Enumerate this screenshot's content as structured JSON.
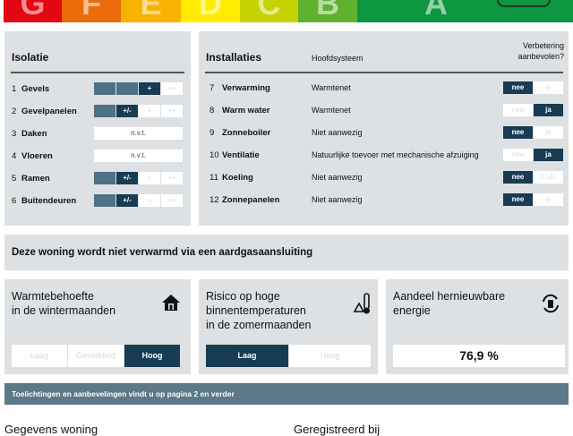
{
  "label_bar": [
    {
      "letter": "G",
      "color": "#e30613"
    },
    {
      "letter": "F",
      "color": "#ec6b09"
    },
    {
      "letter": "E",
      "color": "#f8b200"
    },
    {
      "letter": "D",
      "color": "#ffec00"
    },
    {
      "letter": "C",
      "color": "#c6d300"
    },
    {
      "letter": "B",
      "color": "#5fb130"
    },
    {
      "letter": "A",
      "color": "#0c9640"
    }
  ],
  "isolatie": {
    "title": "Isolatie",
    "rows": [
      {
        "num": "1",
        "label": "Gevels",
        "cells": [
          {
            "t": "",
            "s": "fill"
          },
          {
            "t": "",
            "s": "fill"
          },
          {
            "t": "+",
            "s": "sel"
          },
          {
            "t": "++",
            "s": "empty"
          }
        ]
      },
      {
        "num": "2",
        "label": "Gevelpanelen",
        "cells": [
          {
            "t": "",
            "s": "fill"
          },
          {
            "t": "+/-",
            "s": "sel"
          },
          {
            "t": "+",
            "s": "empty"
          },
          {
            "t": "++",
            "s": "empty"
          }
        ]
      },
      {
        "num": "3",
        "label": "Daken",
        "value": "n.v.t."
      },
      {
        "num": "4",
        "label": "Vloeren",
        "value": "n.v.t."
      },
      {
        "num": "5",
        "label": "Ramen",
        "cells": [
          {
            "t": "",
            "s": "fill"
          },
          {
            "t": "+/-",
            "s": "sel"
          },
          {
            "t": "+",
            "s": "empty"
          },
          {
            "t": "++",
            "s": "empty"
          }
        ]
      },
      {
        "num": "6",
        "label": "Buitendeuren",
        "cells": [
          {
            "t": "",
            "s": "fill"
          },
          {
            "t": "+/-",
            "s": "sel"
          },
          {
            "t": "+",
            "s": "empty"
          },
          {
            "t": "++",
            "s": "empty"
          }
        ]
      }
    ]
  },
  "installaties": {
    "title": "Installaties",
    "col_system": "Hoofdsysteem",
    "col_improve": "Verbetering aanbevolen?",
    "rows": [
      {
        "num": "7",
        "label": "Verwarming",
        "system": "Warmtenet",
        "options": [
          "nee",
          "ja"
        ],
        "selected": 0
      },
      {
        "num": "8",
        "label": "Warm water",
        "system": "Warmtenet",
        "options": [
          "nee",
          "ja"
        ],
        "selected": 1
      },
      {
        "num": "9",
        "label": "Zonneboiler",
        "system": "Niet aanwezig",
        "options": [
          "nee",
          "ja"
        ],
        "selected": 0
      },
      {
        "num": "10",
        "label": "Ventilatie",
        "system": "Natuurlijke toevoer met mechanische afzuiging",
        "options": [
          "nee",
          "ja"
        ],
        "selected": 1
      },
      {
        "num": "11",
        "label": "Koeling",
        "system": "Niet aanwezig",
        "options": [
          "nee",
          "n.t.b."
        ],
        "selected": 0
      },
      {
        "num": "12",
        "label": "Zonnepanelen",
        "system": "Niet aanwezig",
        "options": [
          "nee",
          "ja"
        ],
        "selected": 0
      }
    ]
  },
  "gas_notice": "Deze woning wordt niet verwarmd via een aardgasaansluiting",
  "warmte": {
    "title1": "Warmtebehoefte",
    "title2": "in de wintermaanden",
    "icon": "house-icon",
    "options": [
      "Laag",
      "Gemiddeld",
      "Hoog"
    ],
    "selected": 2
  },
  "risico": {
    "title1": "Risico op hoge",
    "title2": "binnentemperaturen",
    "title3": "in de zomermaanden",
    "icon": "thermometer-icon",
    "options": [
      "Laag",
      "Hoog"
    ],
    "selected": 0
  },
  "hernieuwbaar": {
    "title1": "Aandeel hernieuwbare",
    "title2": "energie",
    "icon": "renewable-icon",
    "value": "76,9 %"
  },
  "info_bar": "Toelichtingen en aanbevelingen vindt u op pagina 2 en verder",
  "bottom": {
    "left": "Gegevens woning",
    "right": "Geregistreerd bij"
  },
  "colors": {
    "dark": "#173c53",
    "fill": "#4f7184",
    "panel": "#dde1e4",
    "info": "#5b7986"
  }
}
